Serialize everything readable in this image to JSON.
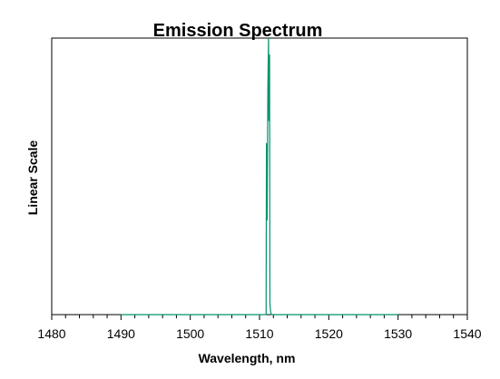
{
  "chart_data": {
    "type": "line",
    "title": "Emission Spectrum",
    "xlabel": "Wavelength, nm",
    "ylabel": "Linear Scale",
    "xlim": [
      1480,
      1540
    ],
    "ylim": [
      0,
      1
    ],
    "grid": false,
    "legend": "none",
    "y_tick_labels": false,
    "x_ticks": [
      1480,
      1490,
      1500,
      1510,
      1520,
      1530,
      1540
    ],
    "x_tick_labels": [
      "1480",
      "1490",
      "1500",
      "1510",
      "1520",
      "1530",
      "1540"
    ],
    "x_minor_step": 2,
    "colors": {
      "series": "#00936b",
      "axes": "#000000",
      "background": "#ffffff"
    },
    "series": [
      {
        "x": [
          1490.0,
          1510.8,
          1510.95,
          1511.0,
          1511.1,
          1511.2,
          1511.3,
          1511.35,
          1511.45,
          1511.5,
          1511.6,
          1511.7,
          1530.0
        ],
        "y": [
          0.0,
          0.0,
          0.0,
          0.62,
          0.34,
          0.81,
          1.0,
          0.7,
          0.94,
          0.04,
          0.01,
          0.0,
          0.0
        ]
      }
    ]
  }
}
